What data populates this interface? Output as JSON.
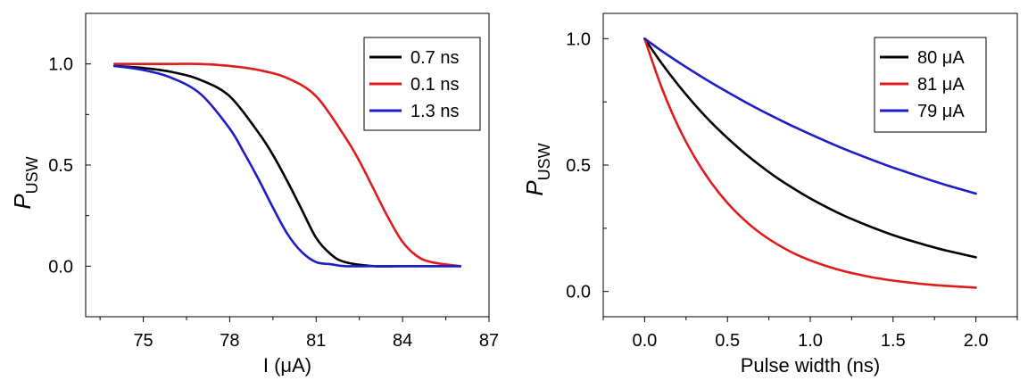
{
  "chart_data": [
    {
      "type": "line",
      "xlabel": "I (μA)",
      "ylabel_main": "P",
      "ylabel_sub": "USW",
      "xlim": [
        73,
        87
      ],
      "ylim": [
        -0.25,
        1.25
      ],
      "xticks": [
        75,
        78,
        81,
        84,
        87
      ],
      "xtick_labels": [
        "75",
        "78",
        "81",
        "84",
        "87"
      ],
      "yticks": [
        0,
        0.5,
        1
      ],
      "ytick_labels": [
        "0.0",
        "0.5",
        "1.0"
      ],
      "legend_position": "top-right",
      "series": [
        {
          "name": "0.7 ns",
          "color": "#000000",
          "x": [
            74,
            75,
            76,
            77,
            78,
            79,
            79.5,
            80,
            80.5,
            81,
            81.5,
            82,
            83,
            84,
            86
          ],
          "y": [
            0.99,
            0.98,
            0.96,
            0.92,
            0.84,
            0.66,
            0.55,
            0.42,
            0.28,
            0.14,
            0.06,
            0.02,
            0.0,
            0.0,
            0.0
          ]
        },
        {
          "name": "0.1 ns",
          "color": "#e01b1b",
          "x": [
            74,
            75,
            76,
            77,
            78,
            79,
            80,
            81,
            82,
            82.5,
            83,
            83.5,
            84,
            84.5,
            85,
            86
          ],
          "y": [
            1.0,
            1.0,
            1.0,
            1.0,
            0.99,
            0.97,
            0.93,
            0.84,
            0.64,
            0.52,
            0.38,
            0.24,
            0.12,
            0.05,
            0.02,
            0.0
          ]
        },
        {
          "name": "1.3 ns",
          "color": "#1c1cc8",
          "x": [
            74,
            75,
            76,
            77,
            78,
            78.5,
            79,
            79.5,
            80,
            80.5,
            81,
            81.5,
            82,
            83,
            84,
            86
          ],
          "y": [
            0.99,
            0.97,
            0.93,
            0.85,
            0.68,
            0.56,
            0.43,
            0.29,
            0.16,
            0.07,
            0.02,
            0.01,
            0.0,
            0.0,
            0.0,
            0.0
          ]
        }
      ]
    },
    {
      "type": "line",
      "xlabel": "Pulse width (ns)",
      "ylabel_main": "P",
      "ylabel_sub": "USW",
      "xlim": [
        -0.25,
        2.25
      ],
      "ylim": [
        -0.1,
        1.1
      ],
      "xticks": [
        0,
        0.5,
        1,
        1.5,
        2
      ],
      "xtick_labels": [
        "0.0",
        "0.5",
        "1.0",
        "1.5",
        "2.0"
      ],
      "yticks": [
        0,
        0.5,
        1
      ],
      "ytick_labels": [
        "0.0",
        "0.5",
        "1.0"
      ],
      "legend_position": "top-right",
      "series": [
        {
          "name": "80 μA",
          "color": "#000000",
          "x": [
            0,
            0.1,
            0.2,
            0.3,
            0.4,
            0.5,
            0.6,
            0.7,
            0.8,
            0.9,
            1.0,
            1.1,
            1.2,
            1.3,
            1.4,
            1.5,
            1.6,
            1.7,
            1.8,
            1.9,
            2.0
          ],
          "y": [
            1.0,
            0.905,
            0.819,
            0.741,
            0.67,
            0.607,
            0.549,
            0.497,
            0.449,
            0.407,
            0.368,
            0.333,
            0.301,
            0.273,
            0.247,
            0.223,
            0.202,
            0.183,
            0.165,
            0.15,
            0.135
          ]
        },
        {
          "name": "81 μA",
          "color": "#e01b1b",
          "x": [
            0,
            0.1,
            0.2,
            0.3,
            0.4,
            0.5,
            0.6,
            0.7,
            0.8,
            0.9,
            1.0,
            1.1,
            1.2,
            1.3,
            1.4,
            1.5,
            1.6,
            1.7,
            1.8,
            1.9,
            2.0
          ],
          "y": [
            1.0,
            0.811,
            0.657,
            0.533,
            0.432,
            0.35,
            0.284,
            0.23,
            0.187,
            0.151,
            0.123,
            0.1,
            0.081,
            0.066,
            0.053,
            0.043,
            0.035,
            0.028,
            0.023,
            0.019,
            0.015
          ]
        },
        {
          "name": "79 μA",
          "color": "#1c1cc8",
          "x": [
            0,
            0.1,
            0.2,
            0.3,
            0.4,
            0.5,
            0.6,
            0.7,
            0.8,
            0.9,
            1.0,
            1.1,
            1.2,
            1.3,
            1.4,
            1.5,
            1.6,
            1.7,
            1.8,
            1.9,
            2.0
          ],
          "y": [
            1.0,
            0.953,
            0.909,
            0.867,
            0.827,
            0.789,
            0.752,
            0.717,
            0.684,
            0.652,
            0.622,
            0.593,
            0.565,
            0.539,
            0.514,
            0.49,
            0.468,
            0.446,
            0.425,
            0.406,
            0.387
          ]
        }
      ]
    }
  ]
}
